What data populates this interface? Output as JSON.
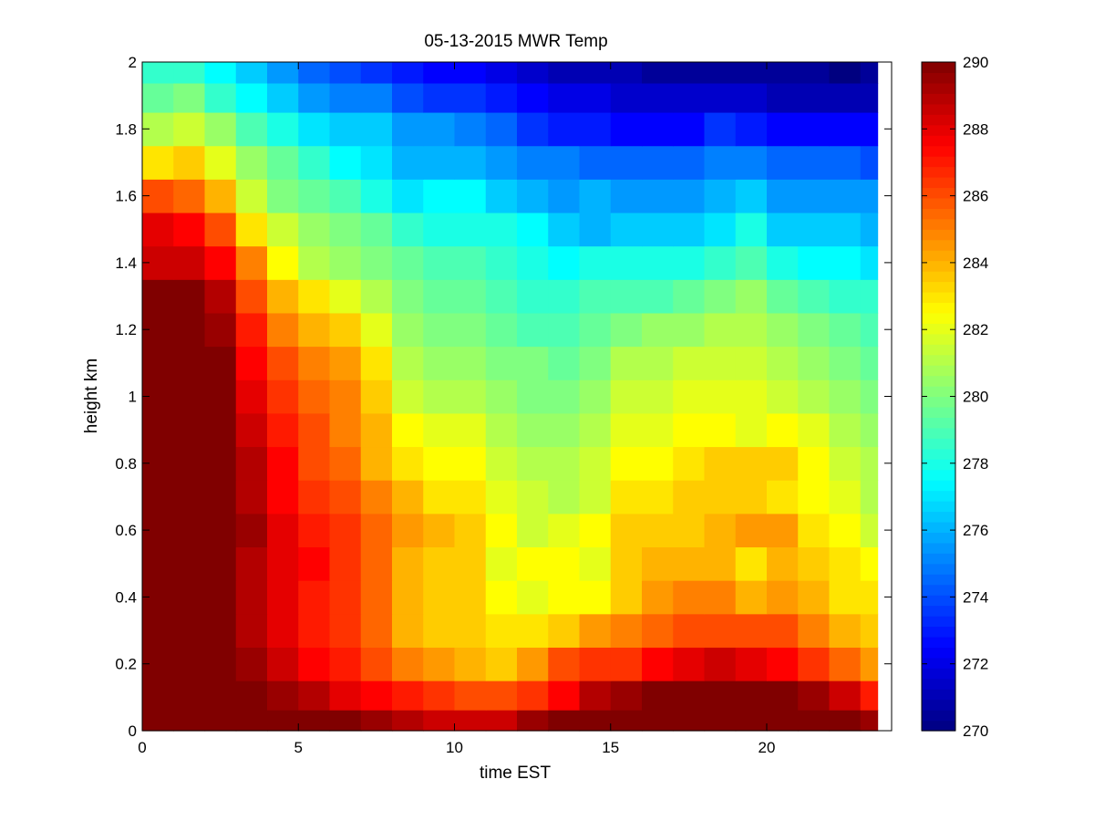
{
  "chart_data": {
    "type": "heatmap",
    "title": "05-13-2015 MWR Temp",
    "xlabel": "time EST",
    "ylabel": "height km",
    "xlim": [
      0,
      24
    ],
    "ylim": [
      0,
      2
    ],
    "x_ticks": [
      0,
      5,
      10,
      15,
      20
    ],
    "y_ticks": [
      0,
      0.2,
      0.4,
      0.6,
      0.8,
      1,
      1.2,
      1.4,
      1.6,
      1.8,
      2
    ],
    "colormap": "jet",
    "clim": [
      270,
      290
    ],
    "colorbar_ticks": [
      270,
      272,
      274,
      276,
      278,
      280,
      282,
      284,
      286,
      288,
      290
    ],
    "x_cells": [
      0,
      1,
      2,
      3,
      4,
      5,
      6,
      7,
      8,
      9,
      10,
      11,
      12,
      13,
      14,
      15,
      16,
      17,
      18,
      19,
      20,
      21,
      22,
      23
    ],
    "y_cells": [
      0.025,
      0.1,
      0.2,
      0.3,
      0.4,
      0.5,
      0.6,
      0.7,
      0.8,
      0.9,
      1.0,
      1.1,
      1.2,
      1.3,
      1.4,
      1.5,
      1.6,
      1.7,
      1.8,
      1.9,
      1.975
    ],
    "values": [
      [
        290,
        290,
        290,
        290,
        290,
        290,
        290,
        289.5,
        289,
        288.5,
        288.5,
        288.5,
        289.5,
        290,
        290,
        290,
        290,
        290,
        290,
        290,
        290,
        290,
        290,
        289.5
      ],
      [
        290,
        290,
        290,
        290,
        289.5,
        289,
        288,
        287.5,
        287,
        286.5,
        286,
        286,
        286.5,
        287.5,
        289,
        289.5,
        290,
        290,
        290,
        290,
        290,
        289.5,
        288.5,
        287
      ],
      [
        290,
        290,
        290,
        289.5,
        288.5,
        287.5,
        287,
        286,
        285,
        284.5,
        284,
        283.5,
        284.5,
        286,
        286.5,
        286.5,
        287.5,
        288,
        288.5,
        288,
        287.5,
        286.5,
        285.5,
        284.5
      ],
      [
        290,
        290,
        290,
        289,
        288,
        287,
        286.5,
        285.5,
        284,
        283.5,
        283.5,
        283,
        283,
        283.5,
        284.5,
        285,
        285.5,
        286,
        286,
        286,
        286,
        285,
        284,
        283.5
      ],
      [
        290,
        290,
        290,
        289,
        288,
        287,
        286.5,
        285.5,
        284,
        283.5,
        283.5,
        282.5,
        282,
        282.5,
        282.5,
        283.5,
        284.5,
        285,
        285,
        284,
        284.5,
        284,
        283,
        283
      ],
      [
        290,
        290,
        290,
        289,
        288,
        287.5,
        286.5,
        285.5,
        284,
        283.5,
        283.5,
        282,
        282.5,
        282.5,
        282,
        283.5,
        284,
        284,
        284,
        283,
        284,
        283.5,
        283,
        282.5
      ],
      [
        290,
        290,
        290,
        289.5,
        288,
        287,
        286.5,
        285.5,
        284.5,
        284,
        283.5,
        282.5,
        281.5,
        282,
        282.5,
        283.5,
        283.5,
        283.5,
        284,
        284.5,
        284.5,
        283,
        282.5,
        281.5
      ],
      [
        290,
        290,
        290,
        289,
        287.5,
        286.5,
        286,
        285,
        284,
        283,
        283,
        282,
        281.5,
        281,
        281.5,
        283,
        283,
        283.5,
        283.5,
        283.5,
        283,
        282.5,
        282,
        281
      ],
      [
        290,
        290,
        290,
        289,
        287.5,
        286,
        285.5,
        284,
        283,
        282.5,
        282.5,
        281.5,
        281,
        281,
        281.5,
        282.5,
        282.5,
        283,
        283.5,
        283.5,
        283.5,
        282.5,
        281.5,
        281
      ],
      [
        290,
        290,
        290,
        288.5,
        287,
        286,
        285,
        284,
        282.5,
        282,
        282,
        281,
        280.5,
        280.5,
        281,
        282,
        282,
        282.5,
        282.5,
        282,
        282.5,
        282,
        281,
        280.5
      ],
      [
        290,
        290,
        290,
        288,
        286.5,
        285.5,
        285,
        283.5,
        281.5,
        281,
        281,
        280.5,
        280,
        280,
        280.5,
        281.5,
        281.5,
        282,
        282,
        282,
        281.5,
        281,
        280.5,
        280
      ],
      [
        290,
        290,
        290,
        287.5,
        286,
        285,
        284.5,
        283,
        281,
        280.5,
        280.5,
        280,
        280,
        279.5,
        280,
        281,
        281,
        281.5,
        281.5,
        281.5,
        281,
        280.5,
        280,
        279.5
      ],
      [
        290,
        290,
        289.5,
        287,
        285,
        284,
        283.5,
        282,
        280.5,
        280,
        280,
        279.5,
        279,
        279,
        279.5,
        280,
        280.5,
        280.5,
        281,
        281,
        280.5,
        280,
        279.5,
        279
      ],
      [
        290,
        290,
        289,
        286,
        284,
        283,
        282,
        281,
        280,
        279.5,
        279.5,
        279,
        278.5,
        278.5,
        279,
        279,
        279,
        279.5,
        280,
        280.5,
        279.5,
        279,
        278.5,
        278.5
      ],
      [
        288.5,
        288.5,
        287.5,
        285,
        282.5,
        281,
        280.5,
        280,
        279.5,
        279,
        279,
        278.5,
        278,
        277.5,
        278,
        278,
        278,
        278,
        278.5,
        279,
        278,
        277.5,
        277.5,
        277
      ],
      [
        288,
        287.5,
        286,
        283,
        281.5,
        280.5,
        280,
        279.5,
        278.5,
        278,
        278,
        278,
        277.5,
        276.5,
        276,
        276.5,
        276.5,
        276.5,
        277,
        278,
        276.5,
        276.5,
        276.5,
        276
      ],
      [
        286,
        285.5,
        284,
        281.5,
        280,
        279.5,
        279,
        278,
        277,
        277.5,
        277.5,
        276.5,
        276,
        275.5,
        276,
        275.5,
        275.5,
        275.5,
        276,
        276.5,
        275.5,
        275.5,
        275.5,
        275.5
      ],
      [
        283,
        283.5,
        282,
        280.5,
        279.5,
        278.5,
        277.5,
        277,
        276,
        276,
        276,
        275.5,
        275,
        275,
        274.5,
        274.5,
        274.5,
        274.5,
        275,
        275,
        274.5,
        274.5,
        274.5,
        274
      ],
      [
        281,
        281.5,
        280.5,
        279,
        278,
        277,
        276.5,
        276.5,
        275.5,
        275.5,
        275,
        274.5,
        273.5,
        273,
        273,
        272.5,
        272.5,
        272.5,
        273.5,
        273,
        272.5,
        272.5,
        272.5,
        272.5
      ],
      [
        279.5,
        280,
        278.5,
        277.5,
        276.5,
        275.5,
        275,
        275,
        274,
        273.5,
        273.5,
        273,
        272.5,
        272,
        272,
        271.5,
        271.5,
        271.5,
        271.5,
        271.5,
        271,
        271,
        271,
        271
      ],
      [
        278.5,
        278.5,
        277.5,
        276.5,
        275.5,
        274.5,
        274,
        273.5,
        273,
        272.5,
        272.5,
        272,
        271.5,
        271,
        271,
        271,
        270.5,
        270.5,
        270.5,
        270.5,
        270.5,
        270.5,
        270,
        270.5
      ]
    ]
  }
}
